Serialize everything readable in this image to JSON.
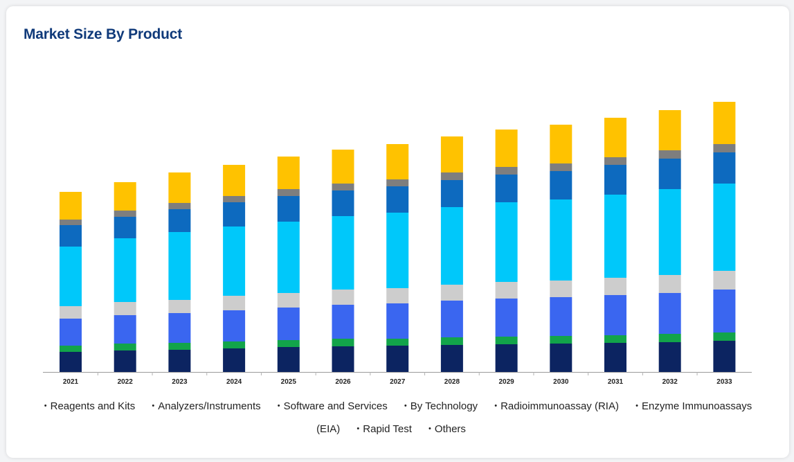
{
  "header": {
    "title": "Market Size By Product"
  },
  "chart_data": {
    "type": "bar",
    "stacked": true,
    "title": "Market Size By Product",
    "xlabel": "",
    "ylabel": "",
    "categories": [
      "2021",
      "2022",
      "2023",
      "2024",
      "2025",
      "2026",
      "2027",
      "2028",
      "2029",
      "2030",
      "2031",
      "2032",
      "2033"
    ],
    "ylim": [
      0,
      400
    ],
    "grid": false,
    "legend_position": "bottom",
    "series": [
      {
        "name": "Reagents and Kits",
        "color": "#0c2461",
        "values": [
          29,
          31,
          32,
          34,
          36,
          37,
          38,
          39,
          40,
          41,
          42,
          43,
          45
        ]
      },
      {
        "name": "Analyzers/Instruments",
        "color": "#12a44a",
        "values": [
          9,
          10,
          10,
          10,
          10,
          11,
          10,
          11,
          11,
          11,
          11,
          12,
          12
        ]
      },
      {
        "name": "Software and Services",
        "color": "#3a66f0",
        "values": [
          39,
          41,
          43,
          45,
          47,
          49,
          51,
          53,
          55,
          56,
          58,
          59,
          62
        ]
      },
      {
        "name": "By Technology",
        "color": "#cdcdcd",
        "values": [
          18,
          19,
          19,
          21,
          21,
          22,
          22,
          23,
          24,
          24,
          25,
          26,
          27
        ]
      },
      {
        "name": "Radioimmunoassay (RIA)",
        "color": "#00c8fa",
        "values": [
          86,
          92,
          98,
          100,
          103,
          106,
          109,
          112,
          115,
          117,
          120,
          124,
          126
        ]
      },
      {
        "name": "Enzyme Immunoassays (EIA)",
        "color": "#0d6abf",
        "values": [
          31,
          31,
          33,
          35,
          37,
          37,
          38,
          39,
          40,
          41,
          43,
          44,
          45
        ]
      },
      {
        "name": "Rapid Test",
        "color": "#7e7e7e",
        "values": [
          8,
          9,
          9,
          9,
          10,
          10,
          10,
          11,
          11,
          11,
          11,
          12,
          12
        ]
      },
      {
        "name": "Others",
        "color": "#ffc200",
        "values": [
          40,
          41,
          44,
          45,
          47,
          49,
          51,
          52,
          54,
          56,
          57,
          58,
          61
        ]
      }
    ]
  }
}
